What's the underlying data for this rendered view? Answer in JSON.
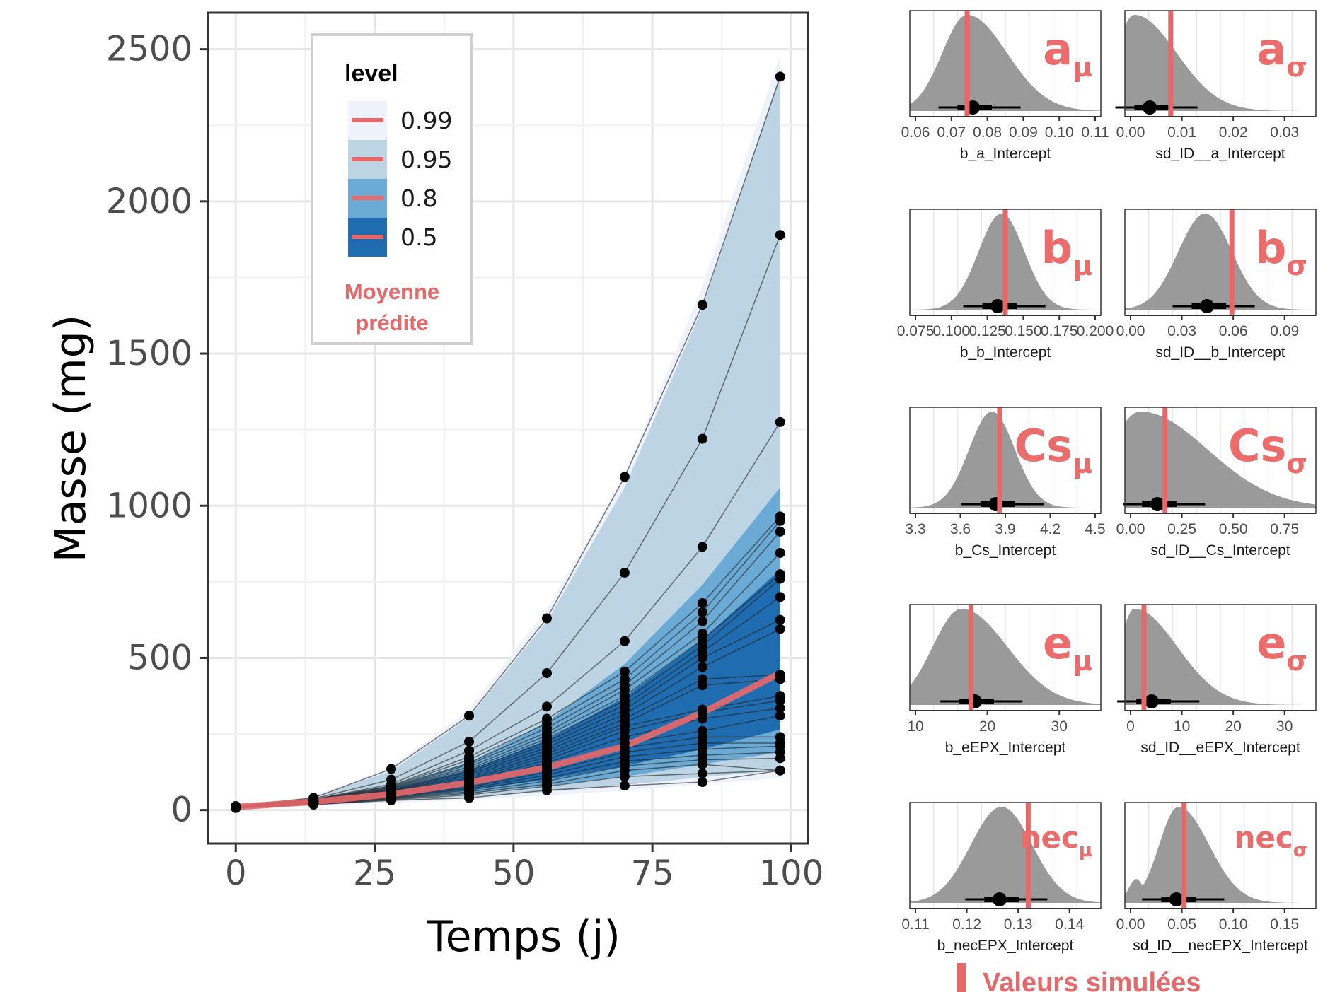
{
  "chart_data": [
    {
      "type": "line",
      "xlabel": "Temps (j)",
      "ylabel": "Masse (mg)",
      "xlim": [
        -5,
        103
      ],
      "ylim": [
        -110,
        2620
      ],
      "xticks": [
        0,
        25,
        50,
        75,
        100
      ],
      "yticks": [
        0,
        500,
        1000,
        1500,
        2000,
        2500
      ],
      "x": [
        0,
        14,
        28,
        42,
        56,
        70,
        84,
        98
      ],
      "bands": [
        {
          "level": "0.99",
          "color": "#eef2fb",
          "lower": [
            4,
            13,
            24,
            33,
            48,
            64,
            85,
            105
          ],
          "upper": [
            16,
            45,
            140,
            330,
            660,
            1100,
            1720,
            2480
          ]
        },
        {
          "level": "0.95",
          "color": "#bdd4e4",
          "lower": [
            5,
            16,
            28,
            42,
            60,
            82,
            108,
            130
          ],
          "upper": [
            15,
            42,
            128,
            305,
            620,
            1060,
            1650,
            2420
          ]
        },
        {
          "level": "0.8",
          "color": "#6aaad4",
          "lower": [
            6,
            19,
            36,
            55,
            80,
            110,
            150,
            190
          ],
          "upper": [
            14,
            36,
            80,
            155,
            290,
            480,
            740,
            1060
          ]
        },
        {
          "level": "0.5",
          "color": "#1f6db0",
          "lower": [
            8,
            22,
            42,
            66,
            100,
            145,
            200,
            265
          ],
          "upper": [
            13,
            32,
            68,
            130,
            230,
            370,
            560,
            790
          ]
        }
      ],
      "mean": [
        10,
        27,
        52,
        90,
        140,
        210,
        320,
        450
      ],
      "individuals": [
        [
          13,
          40,
          135,
          310,
          630,
          1095,
          1660,
          2410
        ],
        [
          12,
          37,
          100,
          225,
          450,
          780,
          1220,
          1890
        ],
        [
          11,
          35,
          85,
          195,
          340,
          555,
          865,
          1275
        ],
        [
          11,
          34,
          80,
          175,
          300,
          455,
          680,
          965
        ],
        [
          11,
          33,
          78,
          165,
          285,
          430,
          650,
          950
        ],
        [
          10,
          32,
          75,
          155,
          270,
          410,
          620,
          915
        ],
        [
          10,
          31,
          72,
          150,
          255,
          395,
          580,
          845
        ],
        [
          10,
          30,
          70,
          142,
          245,
          375,
          560,
          775
        ],
        [
          10,
          29,
          68,
          135,
          235,
          360,
          540,
          760
        ],
        [
          10,
          28,
          65,
          130,
          225,
          345,
          520,
          700
        ],
        [
          10,
          28,
          62,
          125,
          215,
          330,
          500,
          625
        ],
        [
          9,
          27,
          60,
          118,
          205,
          315,
          470,
          595
        ],
        [
          9,
          26,
          58,
          112,
          195,
          300,
          430,
          445
        ],
        [
          9,
          25,
          56,
          105,
          185,
          285,
          410,
          430
        ],
        [
          9,
          25,
          54,
          100,
          175,
          275,
          330,
          375
        ],
        [
          9,
          24,
          52,
          95,
          165,
          260,
          320,
          360
        ],
        [
          9,
          24,
          50,
          90,
          155,
          240,
          300,
          335
        ],
        [
          8,
          23,
          48,
          85,
          145,
          220,
          260,
          310
        ],
        [
          8,
          22,
          46,
          80,
          135,
          205,
          240,
          240
        ],
        [
          8,
          22,
          44,
          75,
          125,
          190,
          220,
          220
        ],
        [
          8,
          21,
          42,
          70,
          115,
          175,
          200,
          210
        ],
        [
          8,
          21,
          40,
          65,
          105,
          160,
          180,
          190
        ],
        [
          8,
          20,
          38,
          60,
          95,
          145,
          165,
          170
        ],
        [
          7,
          19,
          36,
          55,
          85,
          130,
          150,
          130
        ],
        [
          7,
          18,
          34,
          50,
          78,
          110,
          120,
          130
        ],
        [
          7,
          18,
          32,
          40,
          65,
          80,
          92,
          130
        ]
      ],
      "legend": {
        "title": "level",
        "entries": [
          "0.99",
          "0.95",
          "0.8",
          "0.5"
        ],
        "mean_label_line1": "Moyenne",
        "mean_label_line2": "prédite"
      },
      "mean_color": "#e8686a",
      "grid": true
    },
    {
      "type": "area",
      "panels": [
        {
          "xlabel": "b_a_Intercept",
          "ticks": [
            "0.06",
            "0.07",
            "0.08",
            "0.09",
            "0.10",
            "0.11"
          ],
          "label": "a",
          "sub": "μ"
        },
        {
          "xlabel": "sd_ID__a_Intercept",
          "ticks": [
            "0.00",
            "0.01",
            "0.02",
            "0.03"
          ],
          "label": "a",
          "sub": "σ"
        },
        {
          "xlabel": "b_b_Intercept",
          "ticks": [
            "0.075",
            "0.100",
            "0.125",
            "0.150",
            "0.175",
            "0.200"
          ],
          "label": "b",
          "sub": "μ"
        },
        {
          "xlabel": "sd_ID__b_Intercept",
          "ticks": [
            "0.00",
            "0.03",
            "0.06",
            "0.09"
          ],
          "label": "b",
          "sub": "σ"
        },
        {
          "xlabel": "b_Cs_Intercept",
          "ticks": [
            "3.3",
            "3.6",
            "3.9",
            "4.2",
            "4.5"
          ],
          "label": "Cs",
          "sub": "μ"
        },
        {
          "xlabel": "sd_ID__Cs_Intercept",
          "ticks": [
            "0.00",
            "0.25",
            "0.50",
            "0.75"
          ],
          "label": "Cs",
          "sub": "σ"
        },
        {
          "xlabel": "b_eEPX_Intercept",
          "ticks": [
            "10",
            "20",
            "30"
          ],
          "label": "e",
          "sub": "μ"
        },
        {
          "xlabel": "sd_ID__eEPX_Intercept",
          "ticks": [
            "0",
            "10",
            "20",
            "30"
          ],
          "label": "e",
          "sub": "σ"
        },
        {
          "xlabel": "b_necEPX_Intercept",
          "ticks": [
            "0.11",
            "0.12",
            "0.13",
            "0.14"
          ],
          "label": "nec",
          "sub": "μ"
        },
        {
          "xlabel": "sd_ID__necEPX_Intercept",
          "ticks": [
            "0.00",
            "0.05",
            "0.10",
            "0.15"
          ],
          "label": "nec",
          "sub": "σ"
        }
      ],
      "simulated_label": "Valeurs simulées"
    }
  ]
}
